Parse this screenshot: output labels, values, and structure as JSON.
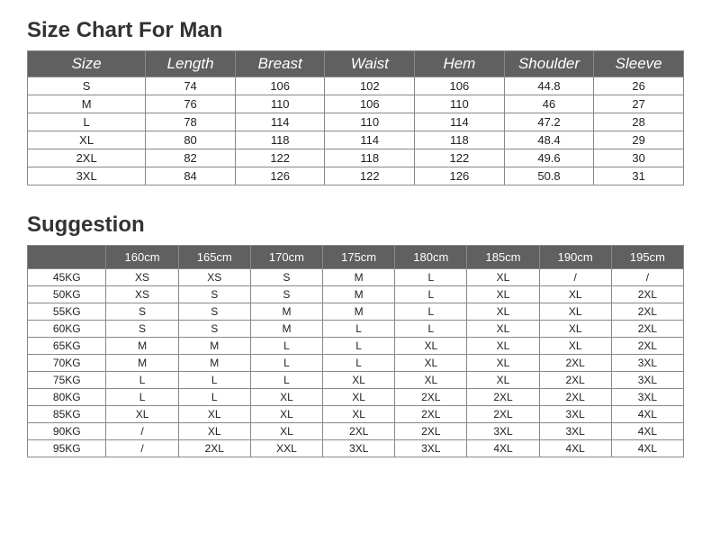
{
  "sizeChart": {
    "title": "Size Chart For Man",
    "headers": [
      "Size",
      "Length",
      "Breast",
      "Waist",
      "Hem",
      "Shoulder",
      "Sleeve"
    ],
    "rows": [
      [
        "S",
        "74",
        "106",
        "102",
        "106",
        "44.8",
        "26"
      ],
      [
        "M",
        "76",
        "110",
        "106",
        "110",
        "46",
        "27"
      ],
      [
        "L",
        "78",
        "114",
        "110",
        "114",
        "47.2",
        "28"
      ],
      [
        "XL",
        "80",
        "118",
        "114",
        "118",
        "48.4",
        "29"
      ],
      [
        "2XL",
        "82",
        "122",
        "118",
        "122",
        "49.6",
        "30"
      ],
      [
        "3XL",
        "84",
        "126",
        "122",
        "126",
        "50.8",
        "31"
      ]
    ],
    "header_bg": "#606060",
    "header_color": "#ffffff",
    "border_color": "#888888",
    "cell_bg": "#ffffff"
  },
  "suggestion": {
    "title": "Suggestion",
    "colHeaders": [
      "",
      "160cm",
      "165cm",
      "170cm",
      "175cm",
      "180cm",
      "185cm",
      "190cm",
      "195cm"
    ],
    "rows": [
      [
        "45KG",
        "XS",
        "XS",
        "S",
        "M",
        "L",
        "XL",
        "/",
        "/"
      ],
      [
        "50KG",
        "XS",
        "S",
        "S",
        "M",
        "L",
        "XL",
        "XL",
        "2XL"
      ],
      [
        "55KG",
        "S",
        "S",
        "M",
        "M",
        "L",
        "XL",
        "XL",
        "2XL"
      ],
      [
        "60KG",
        "S",
        "S",
        "M",
        "L",
        "L",
        "XL",
        "XL",
        "2XL"
      ],
      [
        "65KG",
        "M",
        "M",
        "L",
        "L",
        "XL",
        "XL",
        "XL",
        "2XL"
      ],
      [
        "70KG",
        "M",
        "M",
        "L",
        "L",
        "XL",
        "XL",
        "2XL",
        "3XL"
      ],
      [
        "75KG",
        "L",
        "L",
        "L",
        "XL",
        "XL",
        "XL",
        "2XL",
        "3XL"
      ],
      [
        "80KG",
        "L",
        "L",
        "XL",
        "XL",
        "2XL",
        "2XL",
        "2XL",
        "3XL"
      ],
      [
        "85KG",
        "XL",
        "XL",
        "XL",
        "XL",
        "2XL",
        "2XL",
        "3XL",
        "4XL"
      ],
      [
        "90KG",
        "/",
        "XL",
        "XL",
        "2XL",
        "2XL",
        "3XL",
        "3XL",
        "4XL"
      ],
      [
        "95KG",
        "/",
        "2XL",
        "XXL",
        "3XL",
        "3XL",
        "4XL",
        "4XL",
        "4XL"
      ]
    ],
    "header_bg": "#606060",
    "header_color": "#ffffff",
    "border_color": "#888888",
    "cell_bg": "#ffffff"
  }
}
